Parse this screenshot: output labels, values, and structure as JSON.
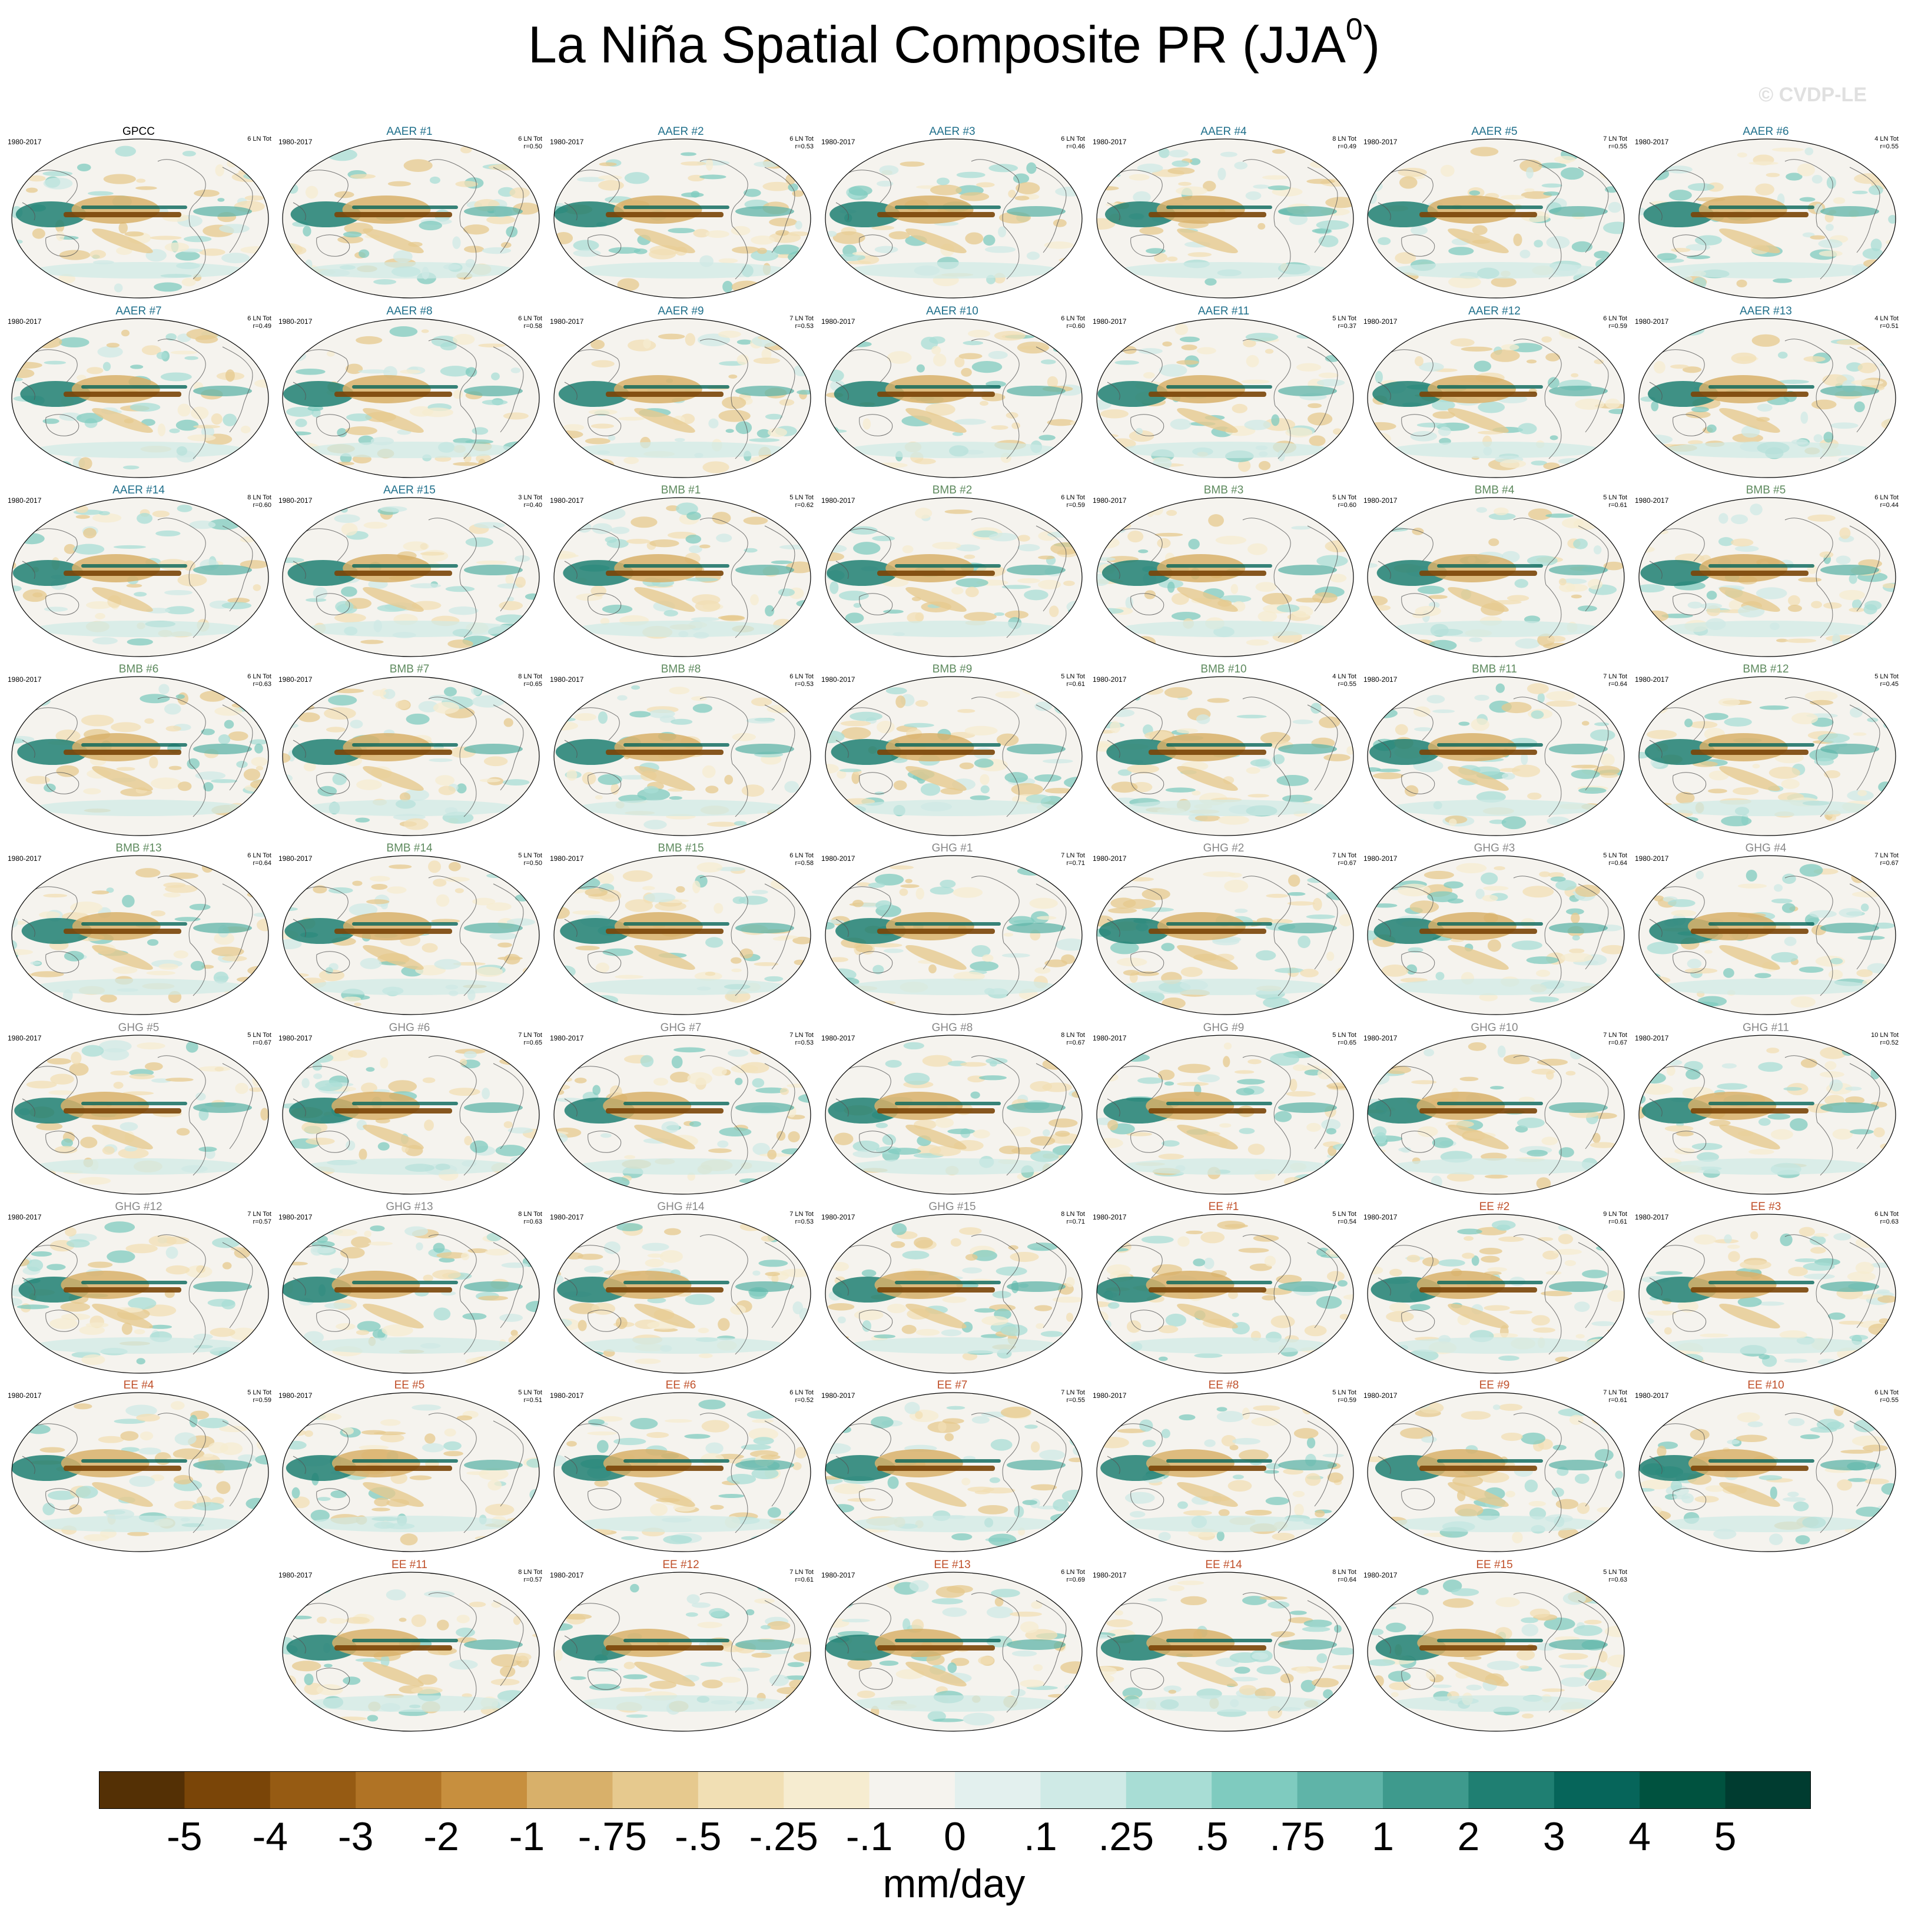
{
  "title": "La Niña Spatial Composite PR (JJA",
  "title_sup": "0",
  "title_close": ")",
  "watermark": "© CVDP-LE",
  "colors": {
    "GPCC": "#000000",
    "AAER": "#1f6f8b",
    "BMB": "#5e8a5e",
    "GHG": "#888888",
    "EE": "#c0502a"
  },
  "chart_data": {
    "type": "map-panels",
    "variable": "PR",
    "season": "JJA",
    "units": "mm/day",
    "colorbar": {
      "levels": [
        "-5",
        "-4",
        "-3",
        "-2",
        "-1",
        "-.75",
        "-.5",
        "-.25",
        "-.1",
        "0",
        ".1",
        ".25",
        ".5",
        ".75",
        "1",
        "2",
        "3",
        "4",
        "5"
      ],
      "colors": [
        "#543005",
        "#7a4508",
        "#965b13",
        "#b07325",
        "#c78f3e",
        "#d8b06a",
        "#e6c98e",
        "#f1dfb4",
        "#f6ecd0",
        "#f5f3ee",
        "#e3f0ee",
        "#cfeae6",
        "#a8ddd5",
        "#7fcbbf",
        "#5fb4a8",
        "#3e9a8d",
        "#1f7f72",
        "#06655a",
        "#00523f",
        "#003c30"
      ]
    },
    "panels": [
      {
        "name": "GPCC",
        "period": "1980-2017",
        "count": "6 LN Tot",
        "r": ""
      },
      {
        "name": "AAER #1",
        "period": "1980-2017",
        "count": "6 LN Tot",
        "r": "r=0.50"
      },
      {
        "name": "AAER #2",
        "period": "1980-2017",
        "count": "6 LN Tot",
        "r": "r=0.53"
      },
      {
        "name": "AAER #3",
        "period": "1980-2017",
        "count": "6 LN Tot",
        "r": "r=0.46"
      },
      {
        "name": "AAER #4",
        "period": "1980-2017",
        "count": "8 LN Tot",
        "r": "r=0.49"
      },
      {
        "name": "AAER #5",
        "period": "1980-2017",
        "count": "7 LN Tot",
        "r": "r=0.55"
      },
      {
        "name": "AAER #6",
        "period": "1980-2017",
        "count": "4 LN Tot",
        "r": "r=0.55"
      },
      {
        "name": "AAER #7",
        "period": "1980-2017",
        "count": "6 LN Tot",
        "r": "r=0.49"
      },
      {
        "name": "AAER #8",
        "period": "1980-2017",
        "count": "6 LN Tot",
        "r": "r=0.58"
      },
      {
        "name": "AAER #9",
        "period": "1980-2017",
        "count": "7 LN Tot",
        "r": "r=0.53"
      },
      {
        "name": "AAER #10",
        "period": "1980-2017",
        "count": "6 LN Tot",
        "r": "r=0.60"
      },
      {
        "name": "AAER #11",
        "period": "1980-2017",
        "count": "5 LN Tot",
        "r": "r=0.37"
      },
      {
        "name": "AAER #12",
        "period": "1980-2017",
        "count": "6 LN Tot",
        "r": "r=0.59"
      },
      {
        "name": "AAER #13",
        "period": "1980-2017",
        "count": "4 LN Tot",
        "r": "r=0.51"
      },
      {
        "name": "AAER #14",
        "period": "1980-2017",
        "count": "8 LN Tot",
        "r": "r=0.60"
      },
      {
        "name": "AAER #15",
        "period": "1980-2017",
        "count": "3 LN Tot",
        "r": "r=0.40"
      },
      {
        "name": "BMB #1",
        "period": "1980-2017",
        "count": "5 LN Tot",
        "r": "r=0.62"
      },
      {
        "name": "BMB #2",
        "period": "1980-2017",
        "count": "6 LN Tot",
        "r": "r=0.59"
      },
      {
        "name": "BMB #3",
        "period": "1980-2017",
        "count": "5 LN Tot",
        "r": "r=0.60"
      },
      {
        "name": "BMB #4",
        "period": "1980-2017",
        "count": "5 LN Tot",
        "r": "r=0.61"
      },
      {
        "name": "BMB #5",
        "period": "1980-2017",
        "count": "6 LN Tot",
        "r": "r=0.44"
      },
      {
        "name": "BMB #6",
        "period": "1980-2017",
        "count": "6 LN Tot",
        "r": "r=0.63"
      },
      {
        "name": "BMB #7",
        "period": "1980-2017",
        "count": "8 LN Tot",
        "r": "r=0.65"
      },
      {
        "name": "BMB #8",
        "period": "1980-2017",
        "count": "6 LN Tot",
        "r": "r=0.53"
      },
      {
        "name": "BMB #9",
        "period": "1980-2017",
        "count": "5 LN Tot",
        "r": "r=0.61"
      },
      {
        "name": "BMB #10",
        "period": "1980-2017",
        "count": "4 LN Tot",
        "r": "r=0.55"
      },
      {
        "name": "BMB #11",
        "period": "1980-2017",
        "count": "7 LN Tot",
        "r": "r=0.64"
      },
      {
        "name": "BMB #12",
        "period": "1980-2017",
        "count": "5 LN Tot",
        "r": "r=0.45"
      },
      {
        "name": "BMB #13",
        "period": "1980-2017",
        "count": "6 LN Tot",
        "r": "r=0.64"
      },
      {
        "name": "BMB #14",
        "period": "1980-2017",
        "count": "5 LN Tot",
        "r": "r=0.50"
      },
      {
        "name": "BMB #15",
        "period": "1980-2017",
        "count": "6 LN Tot",
        "r": "r=0.58"
      },
      {
        "name": "GHG #1",
        "period": "1980-2017",
        "count": "7 LN Tot",
        "r": "r=0.71"
      },
      {
        "name": "GHG #2",
        "period": "1980-2017",
        "count": "7 LN Tot",
        "r": "r=0.67"
      },
      {
        "name": "GHG #3",
        "period": "1980-2017",
        "count": "5 LN Tot",
        "r": "r=0.64"
      },
      {
        "name": "GHG #4",
        "period": "1980-2017",
        "count": "7 LN Tot",
        "r": "r=0.67"
      },
      {
        "name": "GHG #5",
        "period": "1980-2017",
        "count": "5 LN Tot",
        "r": "r=0.67"
      },
      {
        "name": "GHG #6",
        "period": "1980-2017",
        "count": "7 LN Tot",
        "r": "r=0.65"
      },
      {
        "name": "GHG #7",
        "period": "1980-2017",
        "count": "7 LN Tot",
        "r": "r=0.53"
      },
      {
        "name": "GHG #8",
        "period": "1980-2017",
        "count": "8 LN Tot",
        "r": "r=0.67"
      },
      {
        "name": "GHG #9",
        "period": "1980-2017",
        "count": "5 LN Tot",
        "r": "r=0.65"
      },
      {
        "name": "GHG #10",
        "period": "1980-2017",
        "count": "7 LN Tot",
        "r": "r=0.67"
      },
      {
        "name": "GHG #11",
        "period": "1980-2017",
        "count": "10 LN Tot",
        "r": "r=0.52"
      },
      {
        "name": "GHG #12",
        "period": "1980-2017",
        "count": "7 LN Tot",
        "r": "r=0.57"
      },
      {
        "name": "GHG #13",
        "period": "1980-2017",
        "count": "8 LN Tot",
        "r": "r=0.63"
      },
      {
        "name": "GHG #14",
        "period": "1980-2017",
        "count": "7 LN Tot",
        "r": "r=0.53"
      },
      {
        "name": "GHG #15",
        "period": "1980-2017",
        "count": "8 LN Tot",
        "r": "r=0.71"
      },
      {
        "name": "EE #1",
        "period": "1980-2017",
        "count": "5 LN Tot",
        "r": "r=0.54"
      },
      {
        "name": "EE #2",
        "period": "1980-2017",
        "count": "9 LN Tot",
        "r": "r=0.61"
      },
      {
        "name": "EE #3",
        "period": "1980-2017",
        "count": "6 LN Tot",
        "r": "r=0.63"
      },
      {
        "name": "EE #4",
        "period": "1980-2017",
        "count": "5 LN Tot",
        "r": "r=0.59"
      },
      {
        "name": "EE #5",
        "period": "1980-2017",
        "count": "5 LN Tot",
        "r": "r=0.51"
      },
      {
        "name": "EE #6",
        "period": "1980-2017",
        "count": "6 LN Tot",
        "r": "r=0.52"
      },
      {
        "name": "EE #7",
        "period": "1980-2017",
        "count": "7 LN Tot",
        "r": "r=0.55"
      },
      {
        "name": "EE #8",
        "period": "1980-2017",
        "count": "5 LN Tot",
        "r": "r=0.59"
      },
      {
        "name": "EE #9",
        "period": "1980-2017",
        "count": "7 LN Tot",
        "r": "r=0.61"
      },
      {
        "name": "EE #10",
        "period": "1980-2017",
        "count": "6 LN Tot",
        "r": "r=0.55"
      },
      {
        "name": "EE #11",
        "period": "1980-2017",
        "count": "8 LN Tot",
        "r": "r=0.57"
      },
      {
        "name": "EE #12",
        "period": "1980-2017",
        "count": "7 LN Tot",
        "r": "r=0.61"
      },
      {
        "name": "EE #13",
        "period": "1980-2017",
        "count": "6 LN Tot",
        "r": "r=0.69"
      },
      {
        "name": "EE #14",
        "period": "1980-2017",
        "count": "8 LN Tot",
        "r": "r=0.64"
      },
      {
        "name": "EE #15",
        "period": "1980-2017",
        "count": "5 LN Tot",
        "r": "r=0.63"
      }
    ]
  }
}
